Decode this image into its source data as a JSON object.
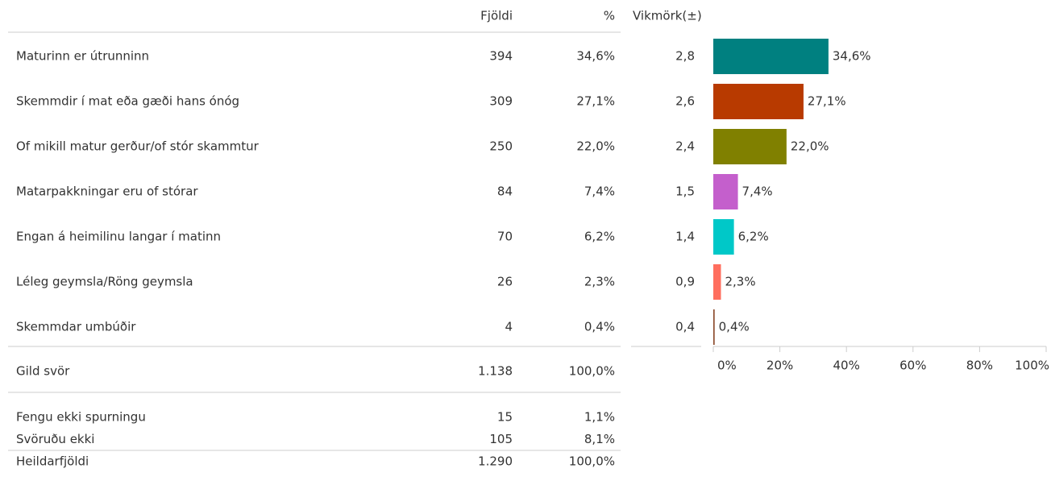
{
  "header": {
    "columns": [
      "Fjöldi",
      "%",
      "Vikmörk(±)"
    ]
  },
  "rows": [
    [
      "Maturinn er útrunninn",
      "394",
      "34,6%",
      "2,8"
    ],
    [
      "Skemmdir í mat eða gæði hans ónóg",
      "309",
      "27,1%",
      "2,6"
    ],
    [
      "Of mikill matur gerður/of stór skammtur",
      "250",
      "22,0%",
      "2,4"
    ],
    [
      "Matarpakkningar eru of stórar",
      "84",
      "7,4%",
      "1,5"
    ],
    [
      "Engan á heimilinu langar í matinn",
      "70",
      "6,2%",
      "1,4"
    ],
    [
      "Léleg geymsla/Röng geymsla",
      "26",
      "2,3%",
      "0,9"
    ],
    [
      "Skemmdar umbúðir",
      "4",
      "0,4%",
      "0,4"
    ]
  ],
  "total": [
    "Gild svör",
    "1.138",
    "100,0%"
  ],
  "extra_rows": [
    [
      "Fengu ekki spurningu",
      "15",
      "1,1%"
    ],
    [
      "Svöruðu ekki",
      "105",
      "8,1%"
    ],
    [
      "Heildarfjöldi",
      "1.290",
      "100,0%"
    ]
  ],
  "chart_data": {
    "type": "bar",
    "orientation": "horizontal",
    "values": [
      34.6,
      27.1,
      22.0,
      7.4,
      6.2,
      2.3,
      0.4
    ],
    "value_labels": [
      "34,6%",
      "27,1%",
      "22,0%",
      "7,4%",
      "6,2%",
      "2,3%",
      "0,4%"
    ],
    "colors": [
      "#008080",
      "#b83a00",
      "#808000",
      "#c45fcc",
      "#00c8c8",
      "#ff6e5e",
      "#8b4a2a"
    ],
    "xlim": [
      0,
      100
    ],
    "xticks": [
      {
        "value": 0,
        "label": "0%"
      },
      {
        "value": 20,
        "label": "20%"
      },
      {
        "value": 40,
        "label": "40%"
      },
      {
        "value": 60,
        "label": "60%"
      },
      {
        "value": 80,
        "label": "80%"
      },
      {
        "value": 100,
        "label": "100%"
      }
    ]
  }
}
